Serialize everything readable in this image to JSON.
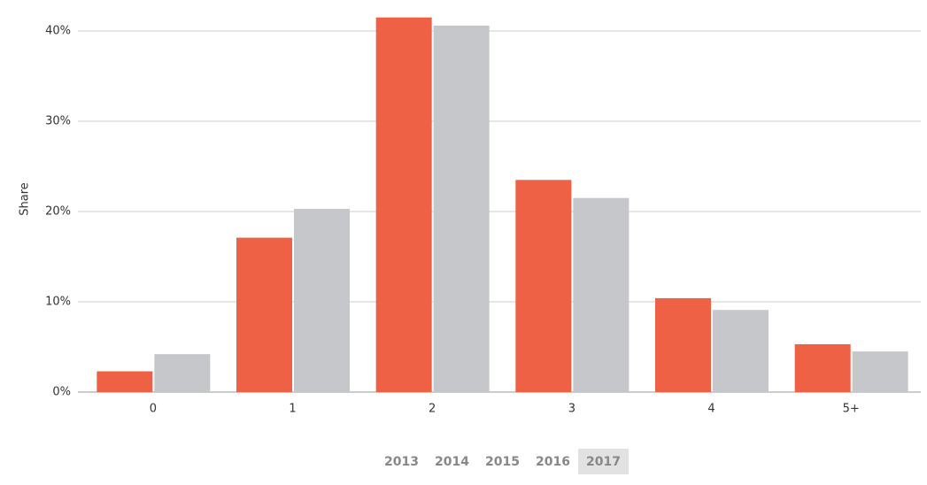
{
  "chart_data": {
    "type": "bar",
    "y_label": "Share",
    "categories": [
      "0",
      "1",
      "2",
      "3",
      "4",
      "5+"
    ],
    "series": [
      {
        "color": "#ee6145",
        "values": [
          2.3,
          17.1,
          41.5,
          23.5,
          10.4,
          5.3
        ]
      },
      {
        "color": "#c6c7ca",
        "values": [
          4.2,
          20.3,
          40.6,
          21.5,
          9.1,
          4.5
        ]
      }
    ],
    "ylim": [
      0,
      42
    ],
    "yticks": [
      {
        "value": 0,
        "label": "0%"
      },
      {
        "value": 10,
        "label": "10%"
      },
      {
        "value": 20,
        "label": "20%"
      },
      {
        "value": 30,
        "label": "30%"
      },
      {
        "value": 40,
        "label": "40%"
      }
    ],
    "grid": true,
    "year_buttons": [
      "2013",
      "2014",
      "2015",
      "2016",
      "2017"
    ],
    "active_button": 4
  }
}
